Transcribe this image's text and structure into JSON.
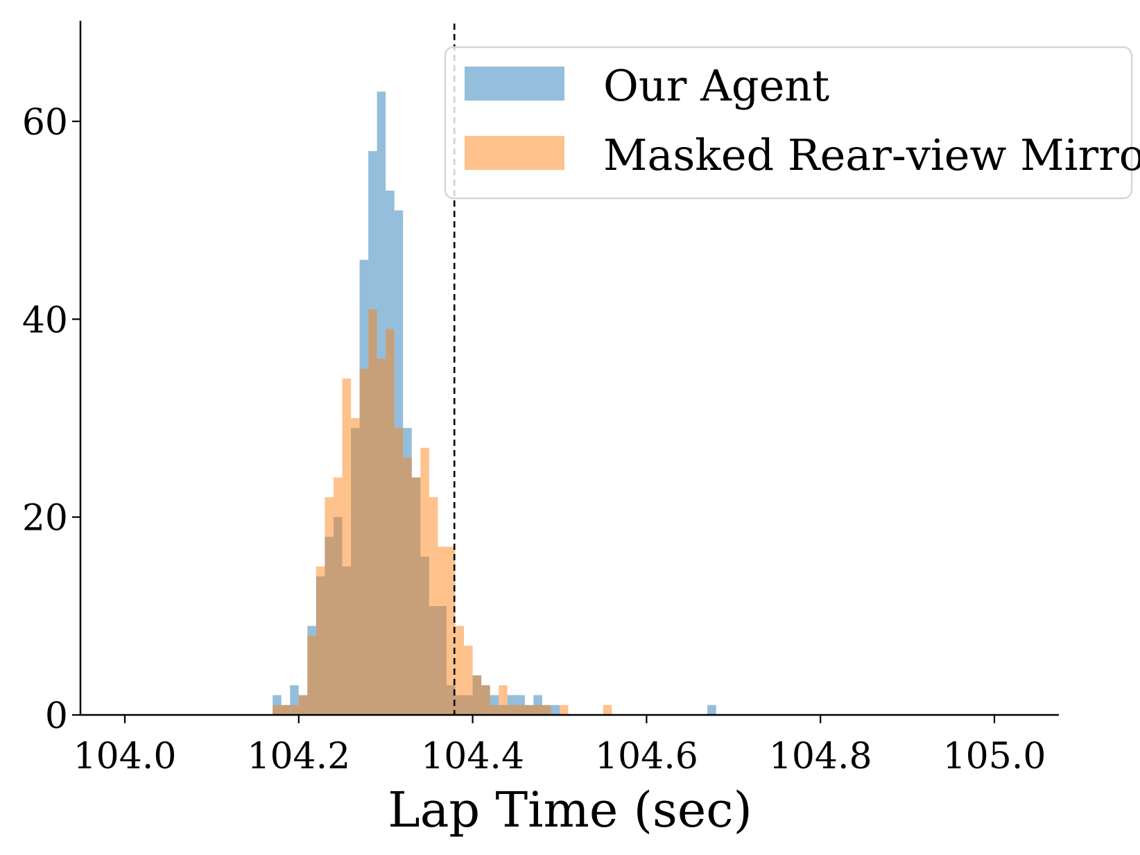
{
  "chart_data": {
    "type": "bar",
    "subtype": "histogram-overlay",
    "title": "",
    "xlabel": "Lap Time (sec)",
    "ylabel": "",
    "xlim": [
      103.95,
      105.05
    ],
    "ylim": [
      0,
      70
    ],
    "x_ticks": [
      "104.0",
      "104.2",
      "104.4",
      "104.6",
      "104.8",
      "105.0"
    ],
    "x_tick_values": [
      104.0,
      104.2,
      104.4,
      104.6,
      104.8,
      105.0
    ],
    "y_ticks": [
      "0",
      "20",
      "40",
      "60"
    ],
    "y_tick_values": [
      0,
      20,
      40,
      60
    ],
    "bin_width": 0.01,
    "reference_line": {
      "x": 104.379,
      "style": "dashed",
      "color": "#000000"
    },
    "grid": false,
    "legend": {
      "position": "top-right"
    },
    "series": [
      {
        "name": "Our Agent",
        "color": "#1f77b4",
        "opacity": 0.48,
        "bins": [
          [
            104.17,
            2
          ],
          [
            104.18,
            1
          ],
          [
            104.19,
            3
          ],
          [
            104.2,
            2
          ],
          [
            104.21,
            9
          ],
          [
            104.22,
            14
          ],
          [
            104.23,
            18
          ],
          [
            104.24,
            20
          ],
          [
            104.25,
            15
          ],
          [
            104.26,
            29
          ],
          [
            104.27,
            46
          ],
          [
            104.28,
            57
          ],
          [
            104.29,
            63
          ],
          [
            104.3,
            53
          ],
          [
            104.31,
            51
          ],
          [
            104.32,
            29
          ],
          [
            104.33,
            24
          ],
          [
            104.34,
            16
          ],
          [
            104.35,
            11
          ],
          [
            104.36,
            11
          ],
          [
            104.37,
            3
          ],
          [
            104.38,
            2
          ],
          [
            104.39,
            2
          ],
          [
            104.4,
            4
          ],
          [
            104.41,
            3
          ],
          [
            104.42,
            2
          ],
          [
            104.43,
            1
          ],
          [
            104.44,
            2
          ],
          [
            104.45,
            2
          ],
          [
            104.46,
            1
          ],
          [
            104.47,
            2
          ],
          [
            104.48,
            1
          ],
          [
            104.49,
            1
          ],
          [
            104.67,
            1
          ]
        ]
      },
      {
        "name": "Masked Rear-view Mirror",
        "color": "#ff7f0e",
        "opacity": 0.48,
        "bins": [
          [
            104.17,
            1
          ],
          [
            104.18,
            1
          ],
          [
            104.19,
            1
          ],
          [
            104.2,
            2
          ],
          [
            104.21,
            8
          ],
          [
            104.22,
            15
          ],
          [
            104.23,
            22
          ],
          [
            104.24,
            24
          ],
          [
            104.25,
            34
          ],
          [
            104.26,
            30
          ],
          [
            104.27,
            35
          ],
          [
            104.28,
            41
          ],
          [
            104.29,
            36
          ],
          [
            104.3,
            39
          ],
          [
            104.31,
            29
          ],
          [
            104.32,
            26
          ],
          [
            104.33,
            24
          ],
          [
            104.34,
            27
          ],
          [
            104.35,
            22
          ],
          [
            104.36,
            17
          ],
          [
            104.37,
            17
          ],
          [
            104.38,
            9
          ],
          [
            104.39,
            7
          ],
          [
            104.4,
            4
          ],
          [
            104.41,
            3
          ],
          [
            104.42,
            1
          ],
          [
            104.43,
            3
          ],
          [
            104.44,
            1
          ],
          [
            104.45,
            1
          ],
          [
            104.46,
            1
          ],
          [
            104.47,
            1
          ],
          [
            104.48,
            1
          ],
          [
            104.5,
            1
          ],
          [
            104.55,
            1
          ]
        ]
      }
    ]
  }
}
